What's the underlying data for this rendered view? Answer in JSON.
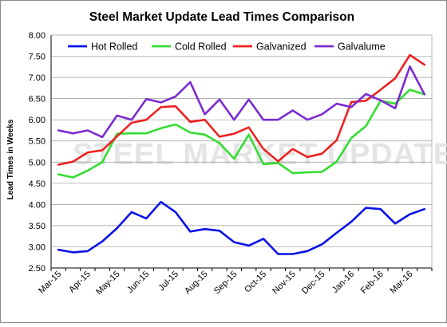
{
  "chart_data": {
    "type": "line",
    "title": "Steel Market Update Lead Times Comparison",
    "ylabel": "Lead Times in Weeks",
    "xlabel": "",
    "ylim": [
      2.5,
      8.0
    ],
    "yticks": [
      "2.50",
      "3.00",
      "3.50",
      "4.00",
      "4.50",
      "5.00",
      "5.50",
      "6.00",
      "6.50",
      "7.00",
      "7.50",
      "8.00"
    ],
    "categories": [
      "Mar-15",
      "",
      "Apr-15",
      "",
      "May-15",
      "",
      "Jun-15",
      "",
      "Jul-15",
      "",
      "Aug-15",
      "",
      "Sep-15",
      "",
      "Oct-15",
      "",
      "Nov-15",
      "",
      "Dec-15",
      "",
      "Jan-16",
      "",
      "Feb-16",
      "",
      "Mar-16",
      ""
    ],
    "grid": "horizontal",
    "legend": "top",
    "watermark": "STEEL MARKET UPDATE",
    "series": [
      {
        "name": "Hot Rolled",
        "color": "#0a14e6",
        "values": [
          2.93,
          2.87,
          2.9,
          3.13,
          3.44,
          3.82,
          3.67,
          4.06,
          3.82,
          3.36,
          3.42,
          3.38,
          3.11,
          3.03,
          3.19,
          2.83,
          2.83,
          2.9,
          3.06,
          3.33,
          3.59,
          3.92,
          3.89,
          3.55,
          3.77,
          3.89
        ]
      },
      {
        "name": "Cold Rolled",
        "color": "#33dd33",
        "values": [
          4.71,
          4.64,
          4.8,
          5.0,
          5.67,
          5.68,
          5.68,
          5.8,
          5.89,
          5.7,
          5.65,
          5.45,
          5.08,
          5.65,
          4.95,
          4.98,
          4.74,
          4.76,
          4.77,
          5.01,
          5.57,
          5.85,
          6.45,
          6.38,
          6.71,
          6.6
        ]
      },
      {
        "name": "Galvanized",
        "color": "#ee2222",
        "values": [
          4.94,
          5.01,
          5.23,
          5.28,
          5.61,
          5.93,
          6.0,
          6.3,
          6.32,
          5.95,
          6.0,
          5.6,
          5.67,
          5.82,
          5.31,
          5.02,
          5.31,
          5.12,
          5.2,
          5.52,
          6.42,
          6.45,
          6.71,
          6.98,
          7.53,
          7.3
        ]
      },
      {
        "name": "Galvalume",
        "color": "#7b2bd0",
        "values": [
          5.75,
          5.68,
          5.75,
          5.59,
          6.1,
          6.0,
          6.49,
          6.41,
          6.55,
          6.89,
          6.13,
          6.48,
          6.0,
          6.48,
          6.0,
          6.0,
          6.22,
          6.0,
          6.13,
          6.38,
          6.3,
          6.61,
          6.46,
          6.27,
          7.26,
          6.6
        ]
      }
    ]
  }
}
